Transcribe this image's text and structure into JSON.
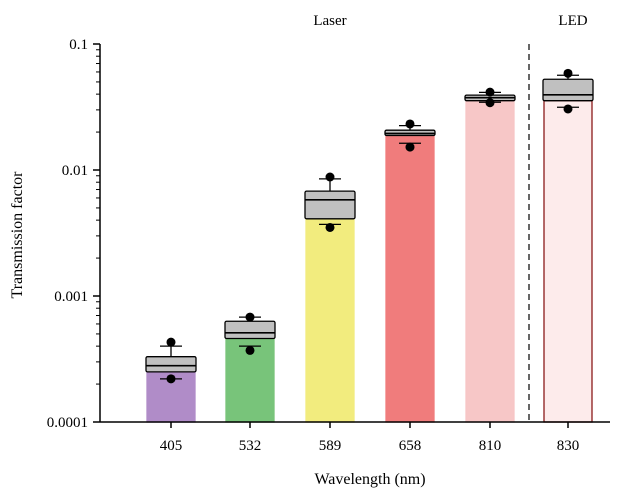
{
  "chart_data": {
    "type": "bar",
    "scale": "log",
    "xlabel": "Wavelength (nm)",
    "ylabel": "Transmission factor",
    "ylim": [
      0.0001,
      0.1
    ],
    "yticks": [
      {
        "value": 0.0001,
        "label": "0.0001"
      },
      {
        "value": 0.001,
        "label": "0.001"
      },
      {
        "value": 0.01,
        "label": "0.01"
      },
      {
        "value": 0.1,
        "label": "0.1"
      }
    ],
    "groups": [
      {
        "label": "Laser",
        "categories": [
          "405",
          "532",
          "589",
          "658",
          "810"
        ]
      },
      {
        "label": "LED",
        "categories": [
          "830"
        ]
      }
    ],
    "categories": [
      "405",
      "532",
      "589",
      "658",
      "810",
      "830"
    ],
    "bars": [
      {
        "category": "405",
        "value": 0.00026,
        "color": "#b08cc8",
        "edge": "#b08cc8",
        "q1": 0.00025,
        "median": 0.00028,
        "q3": 0.00033,
        "whisker_low": 0.00022,
        "whisker_high": 0.0004,
        "points": [
          0.00043,
          0.00022
        ]
      },
      {
        "category": "532",
        "value": 0.00046,
        "color": "#78c47a",
        "edge": "#78c47a",
        "q1": 0.00046,
        "median": 0.00051,
        "q3": 0.00063,
        "whisker_low": 0.0004,
        "whisker_high": 0.00068,
        "points": [
          0.00068,
          0.00037
        ]
      },
      {
        "category": "589",
        "value": 0.0041,
        "color": "#f2ec7e",
        "edge": "#f2ec7e",
        "q1": 0.0041,
        "median": 0.0058,
        "q3": 0.0068,
        "whisker_low": 0.0037,
        "whisker_high": 0.0085,
        "points": [
          0.0088,
          0.0035
        ]
      },
      {
        "category": "658",
        "value": 0.0188,
        "color": "#f07c7c",
        "edge": "#f07c7c",
        "q1": 0.0188,
        "median": 0.0195,
        "q3": 0.0207,
        "whisker_low": 0.0163,
        "whisker_high": 0.0225,
        "points": [
          0.0232,
          0.0152
        ]
      },
      {
        "category": "810",
        "value": 0.0355,
        "color": "#f7c7c7",
        "edge": "#f7c7c7",
        "q1": 0.0355,
        "median": 0.0375,
        "q3": 0.0393,
        "whisker_low": 0.0345,
        "whisker_high": 0.0413,
        "points": [
          0.0415,
          0.0342
        ]
      },
      {
        "category": "830",
        "value": 0.0355,
        "color": "#fdebeb",
        "edge": "#8b1a1a",
        "q1": 0.0355,
        "median": 0.0395,
        "q3": 0.0525,
        "whisker_low": 0.0315,
        "whisker_high": 0.0565,
        "points": [
          0.0585,
          0.0305
        ]
      }
    ],
    "box_color": "#c0c0c0",
    "point_color": "#000000",
    "divider": "dashed-between-810-830",
    "grid": false,
    "legend": "none"
  }
}
